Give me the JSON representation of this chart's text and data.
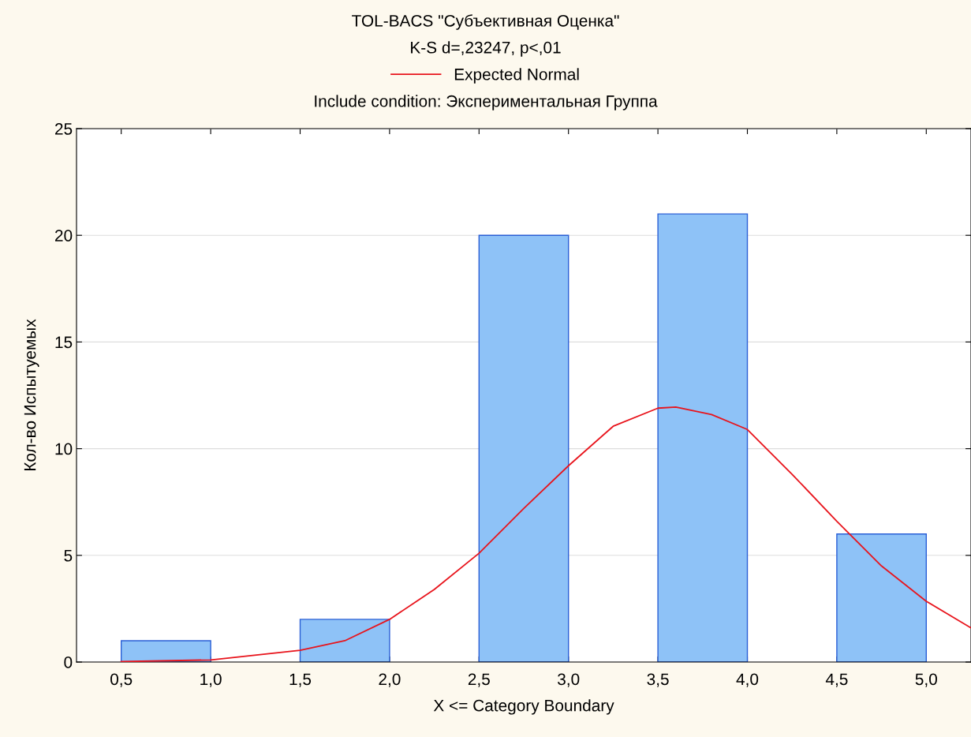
{
  "chart_data": {
    "type": "histogram",
    "title": "TOL-BACS \"Субъективная Оценка\"",
    "subtitle": "K-S d=,23247, p<,01",
    "annotations": [
      "Include condition: Экспериментальная Группа"
    ],
    "xlabel": "X <= Category Boundary",
    "ylabel": "Кол-во Испытуемых",
    "bins": [
      0.5,
      1.0,
      1.5,
      2.0,
      2.5,
      3.0,
      3.5,
      4.0,
      4.5,
      5.0
    ],
    "values": [
      1,
      0,
      2,
      0,
      20,
      0,
      21,
      0,
      6
    ],
    "color": "#8ec2f7",
    "series": [
      {
        "name": "Expected Normal",
        "type": "line",
        "color": "#e8141c",
        "x": [
          0.5,
          1.0,
          1.5,
          1.75,
          2.0,
          2.25,
          2.5,
          2.75,
          3.0,
          3.25,
          3.5,
          3.6,
          3.8,
          4.0,
          4.25,
          4.5,
          4.75,
          5.0,
          5.25
        ],
        "values": [
          0.02,
          0.1,
          0.55,
          1.0,
          2.0,
          3.4,
          5.1,
          7.2,
          9.2,
          11.05,
          11.9,
          11.95,
          11.6,
          10.9,
          8.8,
          6.6,
          4.5,
          2.85,
          1.6
        ]
      }
    ],
    "xlim": [
      0.25,
      5.25
    ],
    "xticks": [
      {
        "value": 0.5,
        "label": "0,5"
      },
      {
        "value": 1.0,
        "label": "1,0"
      },
      {
        "value": 1.5,
        "label": "1,5"
      },
      {
        "value": 2.0,
        "label": "2,0"
      },
      {
        "value": 2.5,
        "label": "2,5"
      },
      {
        "value": 3.0,
        "label": "3,0"
      },
      {
        "value": 3.5,
        "label": "3,5"
      },
      {
        "value": 4.0,
        "label": "4,0"
      },
      {
        "value": 4.5,
        "label": "4,5"
      },
      {
        "value": 5.0,
        "label": "5,0"
      }
    ],
    "ylim": [
      0,
      25
    ],
    "yticks": [
      0,
      5,
      10,
      15,
      20,
      25
    ],
    "grid": "y",
    "legend": "top",
    "marker": "none",
    "line_style": "solid"
  }
}
